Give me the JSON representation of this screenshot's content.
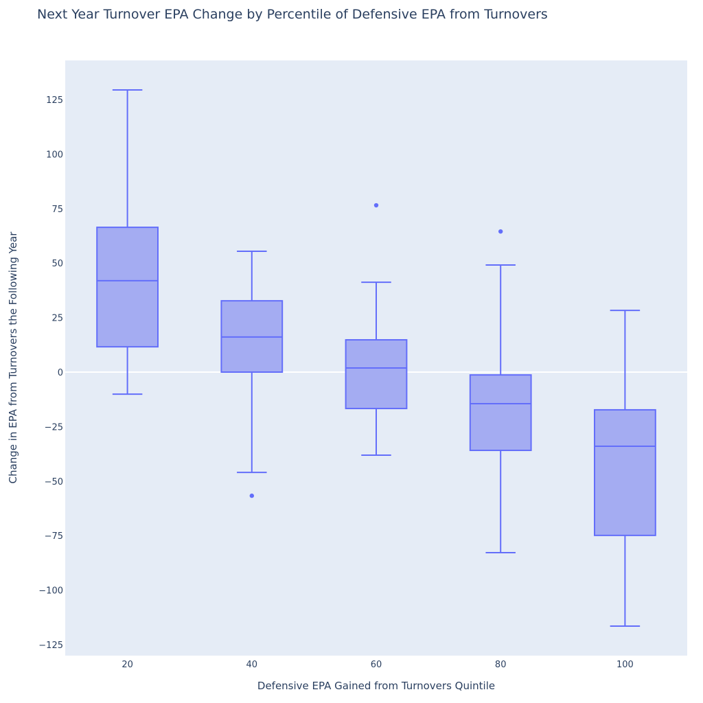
{
  "chart_data": {
    "type": "box",
    "title": "Next Year Turnover EPA Change by Percentile of Defensive EPA from Turnovers",
    "xlabel": "Defensive EPA Gained from Turnovers Quintile",
    "ylabel": "Change in EPA from Turnovers the Following Year",
    "ylim": [
      -130,
      143
    ],
    "yticks": [
      125,
      100,
      75,
      50,
      25,
      0,
      -25,
      -50,
      -75,
      -100,
      -125
    ],
    "ytick_labels": [
      "125",
      "100",
      "75",
      "50",
      "25",
      "0",
      "−25",
      "−50",
      "−75",
      "−100",
      "−125"
    ],
    "grid": false,
    "zeroline": true,
    "colors": {
      "line": "#636efa",
      "fill": "#a4acf2",
      "plot_bg": "#e5ecf6",
      "zeroline": "#ffffff",
      "text": "#2a3f5f"
    },
    "categories": [
      "20",
      "40",
      "60",
      "80",
      "100"
    ],
    "boxes": [
      {
        "category": "20",
        "lower_fence": -10.1,
        "q1": 11.6,
        "median": 41.9,
        "q3": 66.4,
        "upper_fence": 129.4,
        "outliers": []
      },
      {
        "category": "40",
        "lower_fence": -46.0,
        "q1": 0.0,
        "median": 16.1,
        "q3": 32.7,
        "upper_fence": 55.4,
        "outliers": [
          -56.7
        ]
      },
      {
        "category": "60",
        "lower_fence": -38.1,
        "q1": -16.7,
        "median": 1.9,
        "q3": 14.8,
        "upper_fence": 41.2,
        "outliers": [
          76.5
        ]
      },
      {
        "category": "80",
        "lower_fence": -82.8,
        "q1": -35.9,
        "median": -14.5,
        "q3": -1.3,
        "upper_fence": 49.1,
        "outliers": [
          64.5
        ]
      },
      {
        "category": "100",
        "lower_fence": -116.5,
        "q1": -74.9,
        "median": -34.0,
        "q3": -17.3,
        "upper_fence": 28.3,
        "outliers": []
      }
    ]
  }
}
